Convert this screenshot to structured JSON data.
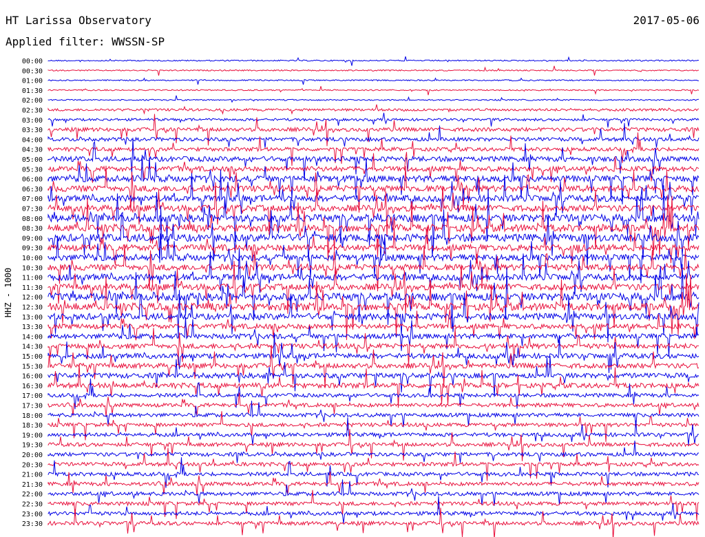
{
  "header": {
    "title": "HT Larissa Observatory",
    "filter": "Applied filter: WWSSN-SP",
    "date": "2017-05-06"
  },
  "colors": {
    "blue": "#0000e6",
    "red": "#e8103c"
  },
  "chart_data": {
    "type": "line",
    "ylabel": "HHZ - 1000",
    "row_colors": [
      "blue",
      "red"
    ],
    "rows": [
      "00:00",
      "00:30",
      "01:00",
      "01:30",
      "02:00",
      "02:30",
      "03:00",
      "03:30",
      "04:00",
      "04:30",
      "05:00",
      "05:30",
      "06:00",
      "06:30",
      "07:00",
      "07:30",
      "08:00",
      "08:30",
      "09:00",
      "09:30",
      "10:00",
      "10:30",
      "11:00",
      "11:30",
      "12:00",
      "12:30",
      "13:00",
      "13:30",
      "14:00",
      "14:30",
      "15:00",
      "15:30",
      "16:00",
      "16:30",
      "17:00",
      "17:30",
      "18:00",
      "18:30",
      "19:00",
      "19:30",
      "20:00",
      "20:30",
      "21:00",
      "21:30",
      "22:00",
      "22:30",
      "23:00",
      "23:30"
    ],
    "noise_level": [
      1,
      1,
      1,
      1,
      1,
      2,
      2,
      3,
      3,
      3,
      4,
      4,
      5,
      5,
      5,
      5,
      6,
      6,
      6,
      5,
      5,
      5,
      5,
      5,
      6,
      6,
      5,
      4,
      4,
      4,
      4,
      4,
      4,
      4,
      3,
      3,
      3,
      3,
      3,
      3,
      3,
      3,
      3,
      3,
      3,
      3,
      3,
      3
    ]
  }
}
